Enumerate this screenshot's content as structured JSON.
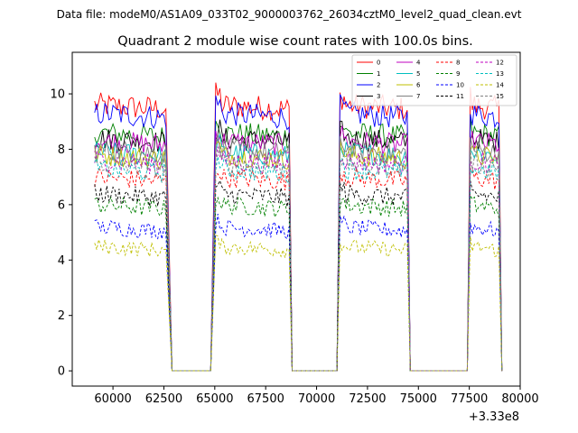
{
  "chart_data": {
    "type": "line",
    "suptitle": "Data file: modeM0/AS1A09_033T02_9000003762_26034cztM0_level2_quad_clean.evt",
    "title": "Quadrant 2 module wise count rates with 100.0s bins.",
    "xlabel": "",
    "ylabel": "",
    "x_offset_label": "+3.33e8",
    "xlim": [
      58000,
      80000
    ],
    "ylim": [
      -0.55,
      11.5
    ],
    "x_ticks": [
      60000,
      62500,
      65000,
      67500,
      70000,
      72500,
      75000,
      77500,
      80000
    ],
    "x_tick_labels": [
      "60000",
      "62500",
      "65000",
      "67500",
      "70000",
      "72500",
      "75000",
      "77500",
      "80000"
    ],
    "y_ticks": [
      0,
      2,
      4,
      6,
      8,
      10
    ],
    "y_tick_labels": [
      "0",
      "2",
      "4",
      "6",
      "8",
      "10"
    ],
    "legend_position": "top-right",
    "segments": [
      {
        "on": [
          59100,
          62600
        ],
        "fall_end": 62900,
        "zero_until": 64800,
        "rise_end": 65050
      },
      {
        "on": [
          65050,
          68650
        ],
        "fall_end": 68800,
        "zero_until": 71000,
        "rise_end": 71150
      },
      {
        "on": [
          71150,
          74500
        ],
        "fall_end": 74600,
        "zero_until": 77400,
        "rise_end": 77550
      },
      {
        "on": [
          77550,
          79000
        ],
        "fall_end": 79100,
        "zero_until": null,
        "rise_end": null
      }
    ],
    "series": [
      {
        "name": "0",
        "color": "#ff0000",
        "dash": false,
        "level": 9.6
      },
      {
        "name": "1",
        "color": "#008000",
        "dash": false,
        "level": 8.6
      },
      {
        "name": "2",
        "color": "#0000ff",
        "dash": false,
        "level": 9.3
      },
      {
        "name": "3",
        "color": "#000000",
        "dash": false,
        "level": 8.4
      },
      {
        "name": "4",
        "color": "#bf00bf",
        "dash": false,
        "level": 8.3
      },
      {
        "name": "5",
        "color": "#00bfbf",
        "dash": false,
        "level": 7.9
      },
      {
        "name": "6",
        "color": "#bfbf00",
        "dash": false,
        "level": 7.8
      },
      {
        "name": "7",
        "color": "#808080",
        "dash": false,
        "level": 8.0
      },
      {
        "name": "8",
        "color": "#ff0000",
        "dash": true,
        "level": 7.0
      },
      {
        "name": "9",
        "color": "#008000",
        "dash": true,
        "level": 6.0
      },
      {
        "name": "10",
        "color": "#0000ff",
        "dash": true,
        "level": 5.2
      },
      {
        "name": "11",
        "color": "#000000",
        "dash": true,
        "level": 6.4
      },
      {
        "name": "12",
        "color": "#bf00bf",
        "dash": true,
        "level": 7.6
      },
      {
        "name": "13",
        "color": "#00bfbf",
        "dash": true,
        "level": 7.3
      },
      {
        "name": "14",
        "color": "#bfbf00",
        "dash": true,
        "level": 4.5
      },
      {
        "name": "15",
        "color": "#808080",
        "dash": true,
        "level": 7.5
      }
    ]
  }
}
